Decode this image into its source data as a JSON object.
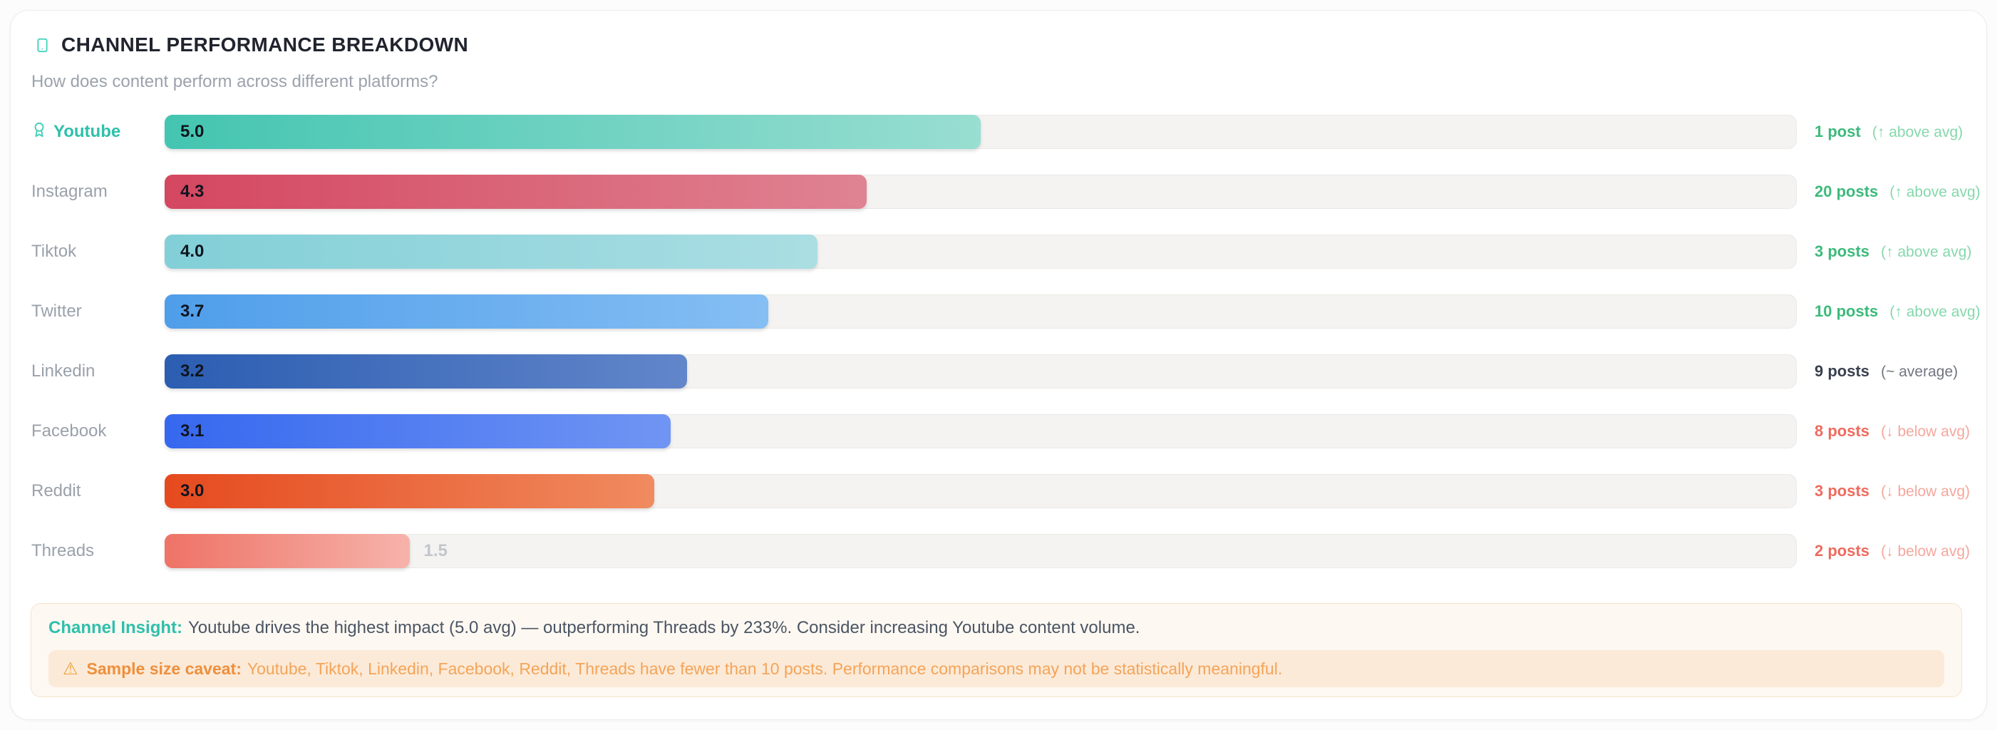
{
  "header": {
    "title": "CHANNEL PERFORMANCE BREAKDOWN",
    "subtitle": "How does content perform across different platforms?",
    "icon": "smartphone-icon"
  },
  "chart_data": {
    "type": "bar",
    "orientation": "horizontal",
    "title": "CHANNEL PERFORMANCE BREAKDOWN",
    "categories": [
      "Youtube",
      "Instagram",
      "Tiktok",
      "Twitter",
      "Linkedin",
      "Facebook",
      "Reddit",
      "Threads"
    ],
    "values": [
      5.0,
      4.3,
      4.0,
      3.7,
      3.2,
      3.1,
      3.0,
      1.5
    ],
    "value_axis_range": [
      0,
      10
    ],
    "post_counts": [
      1,
      20,
      3,
      10,
      9,
      8,
      3,
      2
    ],
    "vs_average": [
      "above",
      "above",
      "above",
      "above",
      "average",
      "below",
      "below",
      "below"
    ],
    "grid": false,
    "legend": false
  },
  "rows": [
    {
      "label": "Youtube",
      "value": "5.0",
      "pct": 50,
      "posts": "1 post",
      "note": "(↑ above avg)",
      "status": "above",
      "bar_from": "#44c5b1",
      "bar_to": "#98ded1"
    },
    {
      "label": "Instagram",
      "value": "4.3",
      "pct": 43,
      "posts": "20 posts",
      "note": "(↑ above avg)",
      "status": "above",
      "bar_from": "#d44760",
      "bar_to": "#df8392"
    },
    {
      "label": "Tiktok",
      "value": "4.0",
      "pct": 40,
      "posts": "3 posts",
      "note": "(↑ above avg)",
      "status": "above",
      "bar_from": "#82cfd7",
      "bar_to": "#aadee3"
    },
    {
      "label": "Twitter",
      "value": "3.7",
      "pct": 37,
      "posts": "10 posts",
      "note": "(↑ above avg)",
      "status": "above",
      "bar_from": "#4f9eea",
      "bar_to": "#85bef3"
    },
    {
      "label": "Linkedin",
      "value": "3.2",
      "pct": 32,
      "posts": "9 posts",
      "note": "(~ average)",
      "status": "average",
      "bar_from": "#2b5db1",
      "bar_to": "#6286ca"
    },
    {
      "label": "Facebook",
      "value": "3.1",
      "pct": 31,
      "posts": "8 posts",
      "note": "(↓ below avg)",
      "status": "below",
      "bar_from": "#3668ef",
      "bar_to": "#7095f3"
    },
    {
      "label": "Reddit",
      "value": "3.0",
      "pct": 30,
      "posts": "3 posts",
      "note": "(↓ below avg)",
      "status": "below",
      "bar_from": "#e54a1e",
      "bar_to": "#f08b60"
    },
    {
      "label": "Threads",
      "value": "1.5",
      "pct": 15,
      "posts": "2 posts",
      "note": "(↓ below avg)",
      "status": "below",
      "bar_from": "#ee7366",
      "bar_to": "#f6b3aa"
    }
  ],
  "insight": {
    "label": "Channel Insight:",
    "text": "Youtube drives the highest impact (5.0 avg) — outperforming Threads by 233%. Consider increasing Youtube content volume.",
    "warning_glyph": "⚠",
    "caveat_label": "Sample size caveat:",
    "caveat_text": "Youtube, Tiktok, Linkedin, Facebook, Reddit, Threads have fewer than 10 posts. Performance comparisons may not be statistically meaningful."
  },
  "colors": {
    "accent_teal": "#2fc0ab",
    "above_avg": "#3cba7b",
    "above_avg_light": "#85d8ab",
    "average": "#3a4150",
    "below_avg": "#ee6b5e",
    "below_avg_light": "#f5a79d",
    "track": "#f4f3f1"
  }
}
